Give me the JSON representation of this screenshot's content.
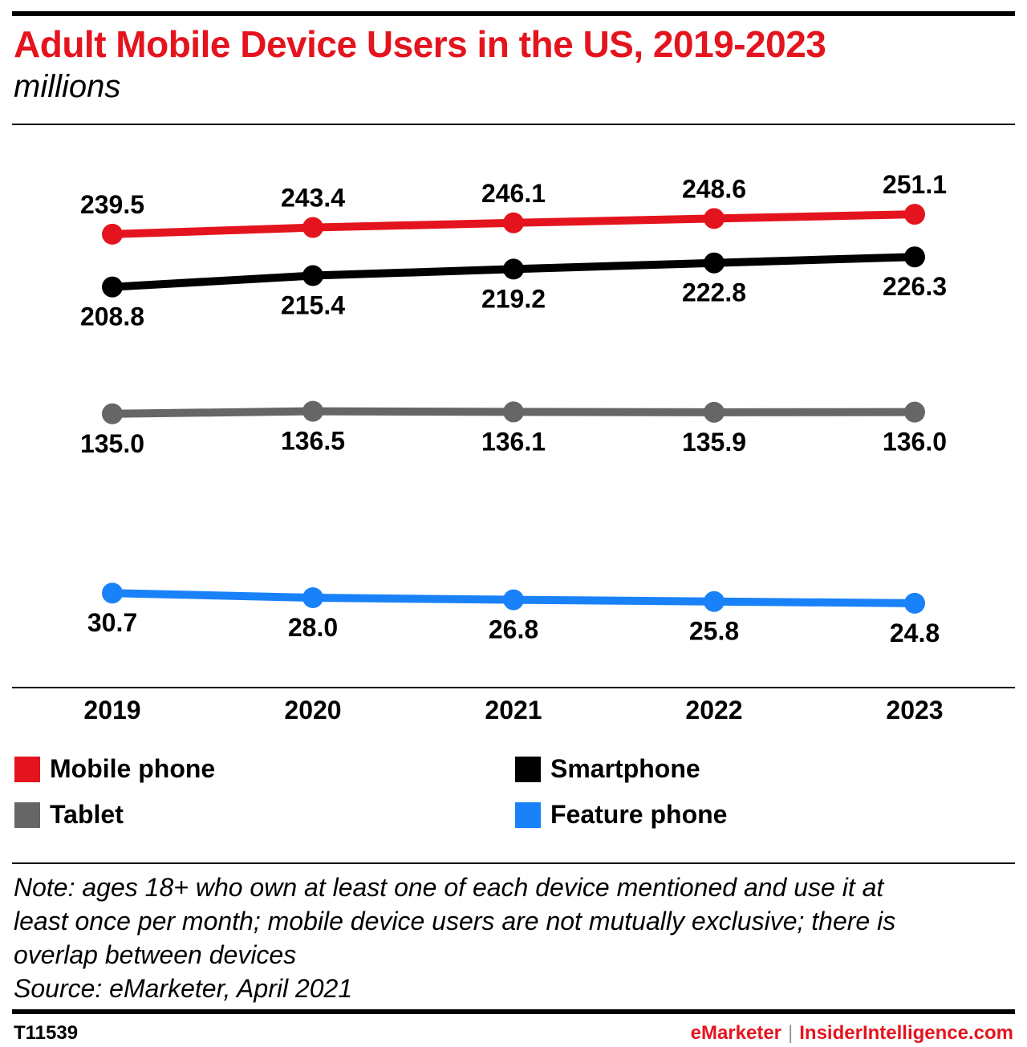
{
  "header": {
    "title": "Adult Mobile Device Users in the US, 2019-2023",
    "subtitle": "millions"
  },
  "chart_data": {
    "type": "line",
    "title": "Adult Mobile Device Users in the US, 2019-2023",
    "subtitle": "millions",
    "categories": [
      "2019",
      "2020",
      "2021",
      "2022",
      "2023"
    ],
    "series": [
      {
        "name": "Mobile phone",
        "color": "#e4141e",
        "values": [
          239.5,
          243.4,
          246.1,
          248.6,
          251.1
        ],
        "labels": [
          "239.5",
          "243.4",
          "246.1",
          "248.6",
          "251.1"
        ],
        "label_position": "above"
      },
      {
        "name": "Smartphone",
        "color": "#000000",
        "values": [
          208.8,
          215.4,
          219.2,
          222.8,
          226.3
        ],
        "labels": [
          "208.8",
          "215.4",
          "219.2",
          "222.8",
          "226.3"
        ],
        "label_position": "below"
      },
      {
        "name": "Tablet",
        "color": "#666666",
        "values": [
          135.0,
          136.5,
          136.1,
          135.9,
          136.0
        ],
        "labels": [
          "135.0",
          "136.5",
          "136.1",
          "135.9",
          "136.0"
        ],
        "label_position": "below"
      },
      {
        "name": "Feature phone",
        "color": "#1a82f8",
        "values": [
          30.7,
          28.0,
          26.8,
          25.8,
          24.8
        ],
        "labels": [
          "30.7",
          "28.0",
          "26.8",
          "25.8",
          "24.8"
        ],
        "label_position": "below"
      }
    ],
    "ylim": [
      0,
      260
    ],
    "grid": false,
    "legend_position": "bottom"
  },
  "legend": {
    "items": [
      {
        "label": "Mobile phone",
        "color": "#e4141e"
      },
      {
        "label": "Smartphone",
        "color": "#000000"
      },
      {
        "label": "Tablet",
        "color": "#666666"
      },
      {
        "label": "Feature phone",
        "color": "#1a82f8"
      }
    ]
  },
  "footer": {
    "note_lines": [
      "Note: ages 18+ who own at least one of each device mentioned and use it at",
      "least once per month; mobile device users are not mutually exclusive; there is",
      "overlap between devices",
      "Source: eMarketer, April 2021"
    ],
    "chart_id": "T11539",
    "brand_left": "eMarketer",
    "brand_separator": "|",
    "brand_right": "InsiderIntelligence.com"
  }
}
